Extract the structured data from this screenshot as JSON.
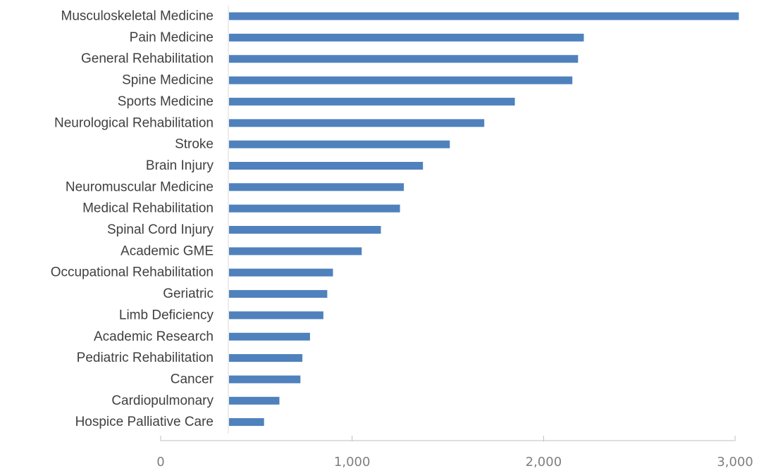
{
  "chart_data": {
    "type": "bar",
    "orientation": "horizontal",
    "categories": [
      "Musculoskeletal Medicine",
      "Pain Medicine",
      "General Rehabilitation",
      "Spine Medicine",
      "Sports Medicine",
      "Neurological Rehabilitation",
      "Stroke",
      "Brain Injury",
      "Neuromuscular Medicine",
      "Medical Rehabilitation",
      "Spinal Cord Injury",
      "Academic GME",
      "Occupational Rehabilitation",
      "Geriatric",
      "Limb Deficiency",
      "Academic Research",
      "Pediatric Rehabilitation",
      "Cancer",
      "Cardiopulmonary",
      "Hospice Palliative Care"
    ],
    "values": [
      3020,
      2210,
      2180,
      2150,
      1850,
      1690,
      1510,
      1370,
      1270,
      1250,
      1150,
      1050,
      900,
      870,
      850,
      780,
      740,
      730,
      620,
      540
    ],
    "xlim": [
      0,
      3000
    ],
    "xticks": [
      0,
      1000,
      2000,
      3000
    ],
    "xtick_labels": [
      "0",
      "1,000",
      "2,000",
      "3,000"
    ],
    "title": "",
    "xlabel": "",
    "ylabel": "",
    "bar_color": "#4f81bd",
    "grid": false,
    "legend": "none"
  }
}
